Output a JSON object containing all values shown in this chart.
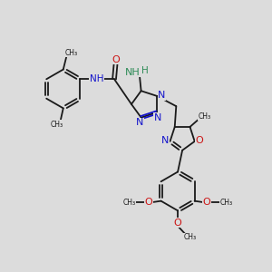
{
  "bg_color": "#dcdcdc",
  "bond_color": "#1a1a1a",
  "blue_color": "#1414cc",
  "red_color": "#cc1414",
  "teal_color": "#2e8b57",
  "figsize": [
    3.0,
    3.0
  ],
  "dpi": 100,
  "xlim": [
    0,
    10
  ],
  "ylim": [
    0,
    10
  ]
}
